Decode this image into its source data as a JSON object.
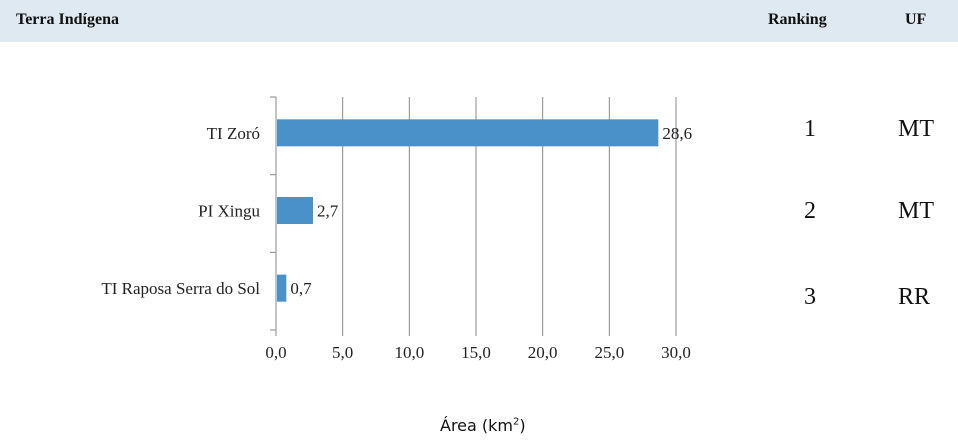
{
  "header": {
    "name_label": "Terra Indígena",
    "ranking_label": "Ranking",
    "uf_label": "UF"
  },
  "rows": [
    {
      "ranking": "1",
      "uf": "MT"
    },
    {
      "ranking": "2",
      "uf": "MT"
    },
    {
      "ranking": "3",
      "uf": "RR"
    }
  ],
  "chart_data": {
    "type": "bar",
    "orientation": "horizontal",
    "categories": [
      "TI Zoró",
      "PI Xingu",
      "TI Raposa Serra do Sol"
    ],
    "values": [
      28.6,
      2.7,
      0.7
    ],
    "value_labels": [
      "28,6",
      "2,7",
      "0,7"
    ],
    "xticks": [
      "0,0",
      "5,0",
      "10,0",
      "15,0",
      "20,0",
      "25,0",
      "30,0"
    ],
    "xlim": [
      0,
      30
    ],
    "xlabel_main": "Área (km",
    "xlabel_sup": "2",
    "xlabel_end": ")",
    "grid": true,
    "colors": {
      "bar": "#4a90c9",
      "grid": "#888888",
      "header_bg": "#dfe9f1"
    }
  }
}
